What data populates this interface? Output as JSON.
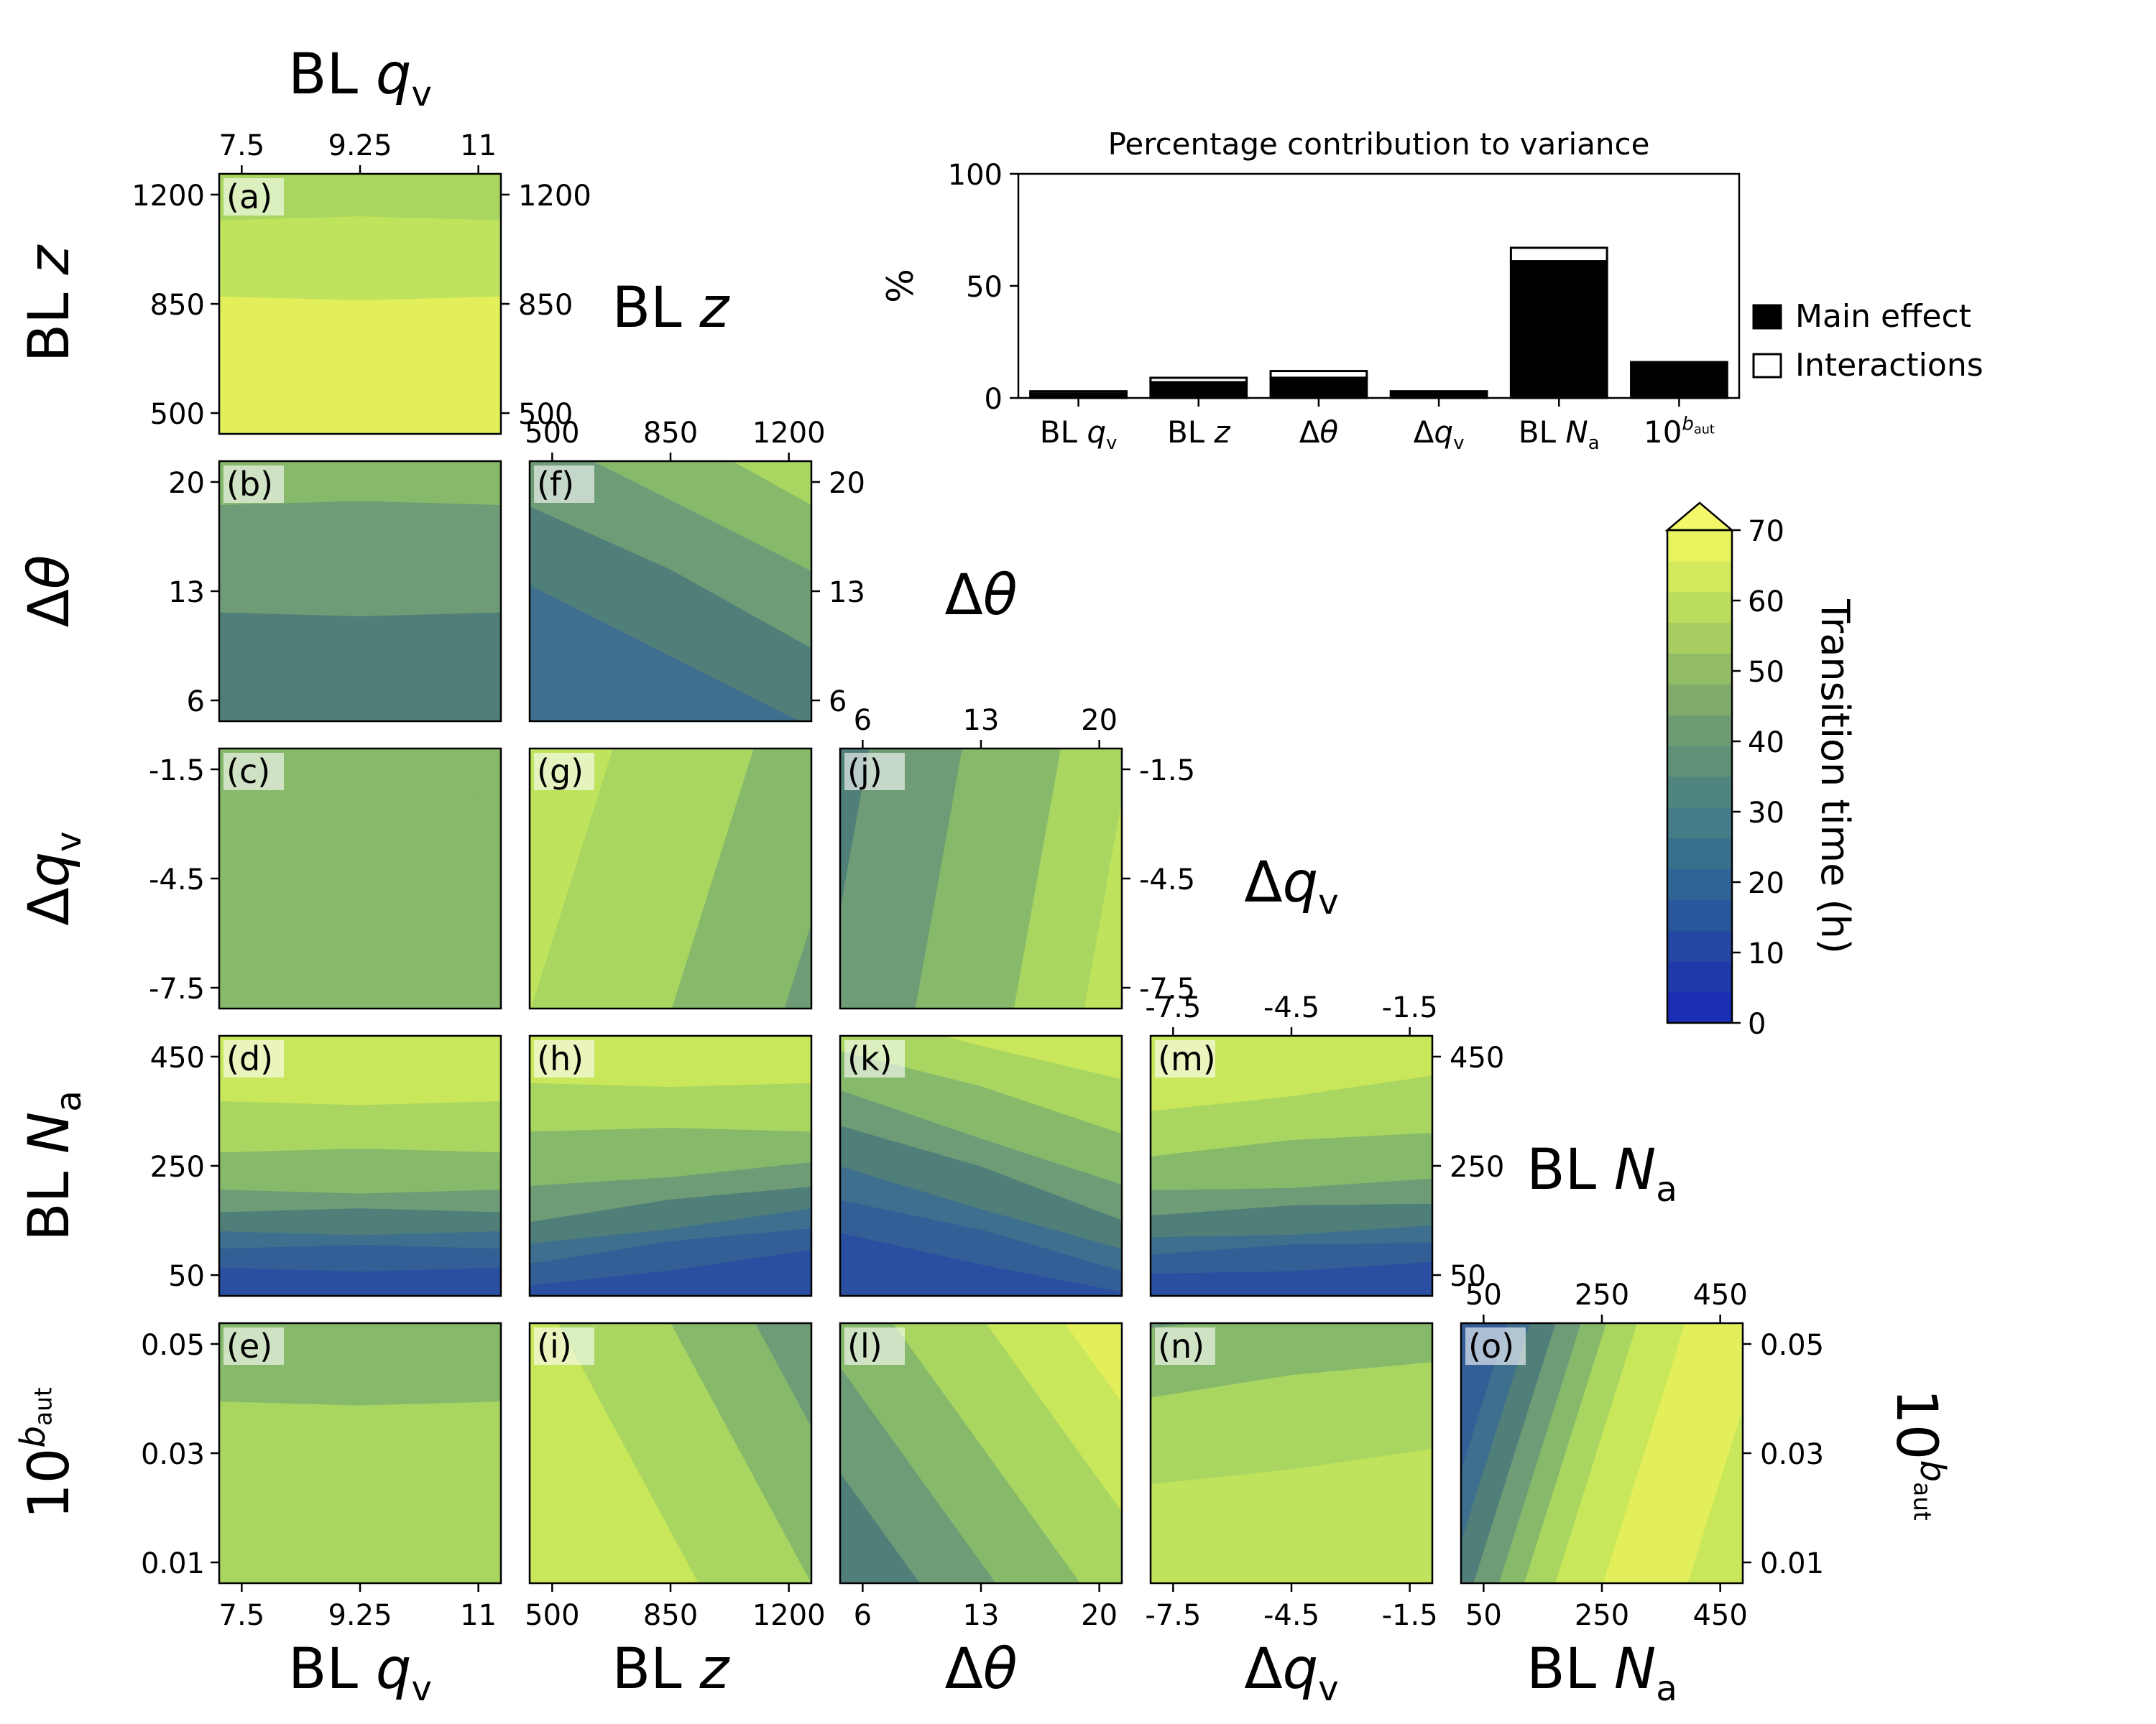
{
  "variables": [
    {
      "key": "qv",
      "pre": "BL ",
      "sym": "q",
      "sub": "v",
      "sup": "",
      "ticks": [
        "7.5",
        "9.25",
        "11"
      ]
    },
    {
      "key": "z",
      "pre": "BL ",
      "sym": "z",
      "sub": "",
      "sup": "",
      "ticks": [
        "500",
        "850",
        "1200"
      ]
    },
    {
      "key": "dtheta",
      "pre": "Δ",
      "sym": "θ",
      "sub": "",
      "sup": "",
      "ticks": [
        "6",
        "13",
        "20"
      ]
    },
    {
      "key": "dqv",
      "pre": "Δ",
      "sym": "q",
      "sub": "v",
      "sup": "",
      "ticks": [
        "-7.5",
        "-4.5",
        "-1.5"
      ]
    },
    {
      "key": "Na",
      "pre": "BL ",
      "sym": "N",
      "sub": "a",
      "sup": "",
      "ticks": [
        "50",
        "250",
        "450"
      ]
    },
    {
      "key": "baut",
      "pre": "10",
      "sym": "",
      "sub": "",
      "sup": "b",
      "supsub": "aut",
      "ticks": [
        "0.01",
        "0.03",
        "0.05"
      ]
    }
  ],
  "panels": [
    {
      "letter": "(a)",
      "col": 0,
      "row": 0,
      "fields": [
        {
          "yc": -0.05,
          "c": "#e3ef5a",
          "s": 0.06
        },
        {
          "yc": 0.28,
          "c": "#bfe35c",
          "s": 0.25
        },
        {
          "yc": 0.62,
          "c": "#a8d660",
          "s": 0.2
        },
        {
          "yc": 1.1,
          "c": "#87b96b",
          "s": 0.25
        }
      ]
    },
    {
      "letter": "(b)",
      "col": 0,
      "row": 1,
      "fields": [
        {
          "yc": -0.1,
          "c": "#507f79",
          "s": 0.1
        },
        {
          "yc": 0.2,
          "c": "#6e9c76",
          "s": 0.22
        },
        {
          "yc": 0.55,
          "c": "#87b96b",
          "s": 0.28
        },
        {
          "yc": 0.9,
          "c": "#a8d660",
          "s": 0.2
        },
        {
          "yc": 1.15,
          "c": "#bfe35c",
          "s": 0.2
        }
      ]
    },
    {
      "letter": "(c)",
      "col": 0,
      "row": 2,
      "fields": [
        {
          "yc": 0.3,
          "c": "#87b96b",
          "s": 0.5
        },
        {
          "yc": 1.05,
          "c": "#a8d660",
          "s": 0.15
        }
      ]
    },
    {
      "letter": "(d)",
      "col": 0,
      "row": 3,
      "fields": [
        {
          "yc": -0.05,
          "c": "#2a4fa0",
          "s": 0.05
        },
        {
          "yc": 0.06,
          "c": "#345f96",
          "s": 0.05
        },
        {
          "yc": 0.13,
          "c": "#3f6f8e",
          "s": 0.05
        },
        {
          "yc": 0.2,
          "c": "#507f79",
          "s": 0.05
        },
        {
          "yc": 0.27,
          "c": "#6e9c76",
          "s": 0.05
        },
        {
          "yc": 0.35,
          "c": "#87b96b",
          "s": 0.06
        },
        {
          "yc": 0.47,
          "c": "#a8d660",
          "s": 0.08
        },
        {
          "yc": 0.65,
          "c": "#c9e75a",
          "s": 0.1
        },
        {
          "yc": 0.9,
          "c": "#e3ef5a",
          "s": 0.15
        }
      ]
    },
    {
      "letter": "(e)",
      "col": 0,
      "row": 4,
      "fields": [
        {
          "yc": 0.1,
          "c": "#a8d660",
          "s": 0.25
        },
        {
          "yc": 0.5,
          "c": "#87b96b",
          "s": 0.2
        },
        {
          "yc": 0.85,
          "c": "#6e9c76",
          "s": 0.15
        },
        {
          "yc": 1.05,
          "c": "#507f79",
          "s": 0.05
        }
      ]
    },
    {
      "letter": "(f)",
      "col": 1,
      "row": 1,
      "fields": [
        {
          "yc": -0.2,
          "c": "#3f6f8e",
          "s": 0.1,
          "tilt": 0.6
        },
        {
          "yc": 0.1,
          "c": "#507f79",
          "s": 0.15,
          "tilt": 0.6
        },
        {
          "yc": 0.4,
          "c": "#6e9c76",
          "s": 0.15,
          "tilt": 0.6
        },
        {
          "yc": 0.7,
          "c": "#87b96b",
          "s": 0.15,
          "tilt": 0.6
        },
        {
          "yc": 0.95,
          "c": "#a8d660",
          "s": 0.15,
          "tilt": 0.6
        },
        {
          "yc": 1.2,
          "c": "#c9e75a",
          "s": 0.12,
          "tilt": 0.6
        },
        {
          "yc": 1.35,
          "c": "#e3ef5a",
          "s": 0.08,
          "tilt": 0.6
        }
      ]
    },
    {
      "letter": "(g)",
      "col": 1,
      "row": 2,
      "fields": [
        {
          "xc": 0.05,
          "c": "#bfe35c",
          "s": 0.12,
          "tilt": -0.35
        },
        {
          "xc": 0.4,
          "c": "#a8d660",
          "s": 0.25,
          "tilt": -0.35
        },
        {
          "xc": 0.85,
          "c": "#87b96b",
          "s": 0.2,
          "tilt": -0.35
        },
        {
          "xc": 1.2,
          "c": "#6e9c76",
          "s": 0.15,
          "tilt": -0.35
        }
      ]
    },
    {
      "letter": "(h)",
      "col": 1,
      "row": 3,
      "fields": [
        {
          "yc": -0.05,
          "c": "#2a4fa0",
          "s": 0.05,
          "tilt": -0.15
        },
        {
          "yc": 0.06,
          "c": "#345f96",
          "s": 0.05,
          "tilt": -0.15
        },
        {
          "yc": 0.14,
          "c": "#3f6f8e",
          "s": 0.05,
          "tilt": -0.15
        },
        {
          "yc": 0.22,
          "c": "#507f79",
          "s": 0.05,
          "tilt": -0.15
        },
        {
          "yc": 0.3,
          "c": "#6e9c76",
          "s": 0.05,
          "tilt": -0.15
        },
        {
          "yc": 0.4,
          "c": "#87b96b",
          "s": 0.07,
          "tilt": -0.1
        },
        {
          "yc": 0.55,
          "c": "#a8d660",
          "s": 0.08
        },
        {
          "yc": 0.72,
          "c": "#c9e75a",
          "s": 0.1
        },
        {
          "yc": 0.95,
          "c": "#e3ef5a",
          "s": 0.15
        }
      ]
    },
    {
      "letter": "(i)",
      "col": 1,
      "row": 4,
      "fields": [
        {
          "xc": 0.15,
          "c": "#c9e75a",
          "s": 0.2,
          "tilt": 0.6
        },
        {
          "xc": 0.55,
          "c": "#a8d660",
          "s": 0.2,
          "tilt": 0.6
        },
        {
          "xc": 0.9,
          "c": "#87b96b",
          "s": 0.15,
          "tilt": 0.6
        },
        {
          "xc": 1.2,
          "c": "#6e9c76",
          "s": 0.15,
          "tilt": 0.6
        },
        {
          "xc": 1.45,
          "c": "#507f79",
          "s": 0.1,
          "tilt": 0.6
        }
      ]
    },
    {
      "letter": "(j)",
      "col": 2,
      "row": 2,
      "fields": [
        {
          "xc": -0.05,
          "c": "#507f79",
          "s": 0.08,
          "tilt": -0.2
        },
        {
          "xc": 0.2,
          "c": "#6e9c76",
          "s": 0.18,
          "tilt": -0.2
        },
        {
          "xc": 0.55,
          "c": "#87b96b",
          "s": 0.2,
          "tilt": -0.2
        },
        {
          "xc": 0.85,
          "c": "#a8d660",
          "s": 0.15,
          "tilt": -0.2
        },
        {
          "xc": 1.1,
          "c": "#bfe35c",
          "s": 0.15,
          "tilt": -0.2
        }
      ]
    },
    {
      "letter": "(k)",
      "col": 2,
      "row": 3,
      "fields": [
        {
          "yc": -0.05,
          "c": "#2a4fa0",
          "s": 0.05,
          "tilt": 0.2
        },
        {
          "yc": 0.07,
          "c": "#345f96",
          "s": 0.06,
          "tilt": 0.25
        },
        {
          "yc": 0.17,
          "c": "#3f6f8e",
          "s": 0.06,
          "tilt": 0.3
        },
        {
          "yc": 0.28,
          "c": "#507f79",
          "s": 0.06,
          "tilt": 0.35
        },
        {
          "yc": 0.4,
          "c": "#6e9c76",
          "s": 0.07,
          "tilt": 0.4
        },
        {
          "yc": 0.53,
          "c": "#87b96b",
          "s": 0.08,
          "tilt": 0.4
        },
        {
          "yc": 0.68,
          "c": "#a8d660",
          "s": 0.1,
          "tilt": 0.35
        },
        {
          "yc": 0.85,
          "c": "#c9e75a",
          "s": 0.12,
          "tilt": 0.3
        },
        {
          "yc": 1.05,
          "c": "#e3ef5a",
          "s": 0.15,
          "tilt": 0.3
        }
      ]
    },
    {
      "letter": "(l)",
      "col": 2,
      "row": 4,
      "fields": [
        {
          "xc": -0.15,
          "c": "#507f79",
          "s": 0.1,
          "tilt": 0.8
        },
        {
          "xc": 0.1,
          "c": "#6e9c76",
          "s": 0.15,
          "tilt": 0.8
        },
        {
          "xc": 0.4,
          "c": "#87b96b",
          "s": 0.18,
          "tilt": 0.8
        },
        {
          "xc": 0.7,
          "c": "#a8d660",
          "s": 0.18,
          "tilt": 0.8
        },
        {
          "xc": 1.0,
          "c": "#c9e75a",
          "s": 0.15,
          "tilt": 0.8
        },
        {
          "xc": 1.25,
          "c": "#e3ef5a",
          "s": 0.12,
          "tilt": 0.8
        }
      ]
    },
    {
      "letter": "(m)",
      "col": 3,
      "row": 3,
      "fields": [
        {
          "yc": -0.05,
          "c": "#2a4fa0",
          "s": 0.05,
          "tilt": -0.05
        },
        {
          "yc": 0.06,
          "c": "#345f96",
          "s": 0.05,
          "tilt": -0.05
        },
        {
          "yc": 0.13,
          "c": "#3f6f8e",
          "s": 0.05,
          "tilt": -0.05
        },
        {
          "yc": 0.2,
          "c": "#507f79",
          "s": 0.05,
          "tilt": -0.05
        },
        {
          "yc": 0.28,
          "c": "#6e9c76",
          "s": 0.05,
          "tilt": -0.05
        },
        {
          "yc": 0.37,
          "c": "#87b96b",
          "s": 0.06,
          "tilt": -0.05
        },
        {
          "yc": 0.5,
          "c": "#a8d660",
          "s": 0.08,
          "tilt": -0.1
        },
        {
          "yc": 0.68,
          "c": "#c9e75a",
          "s": 0.1,
          "tilt": -0.15
        },
        {
          "yc": 0.95,
          "c": "#e3ef5a",
          "s": 0.15,
          "tilt": -0.2
        }
      ]
    },
    {
      "letter": "(n)",
      "col": 3,
      "row": 4,
      "fields": [
        {
          "yc": -0.05,
          "c": "#bfe35c",
          "s": 0.1,
          "tilt": -0.15
        },
        {
          "yc": 0.25,
          "c": "#a8d660",
          "s": 0.2,
          "tilt": -0.15
        },
        {
          "yc": 0.6,
          "c": "#87b96b",
          "s": 0.18,
          "tilt": -0.15
        },
        {
          "yc": 0.9,
          "c": "#6e9c76",
          "s": 0.15,
          "tilt": -0.15
        },
        {
          "yc": 1.1,
          "c": "#507f79",
          "s": 0.08,
          "tilt": -0.15
        }
      ]
    },
    {
      "letter": "(o)",
      "col": 4,
      "row": 4,
      "fields": [
        {
          "xc": -0.05,
          "c": "#345f96",
          "s": 0.05,
          "tilt": -0.35
        },
        {
          "xc": 0.07,
          "c": "#3f6f8e",
          "s": 0.05,
          "tilt": -0.35
        },
        {
          "xc": 0.15,
          "c": "#507f79",
          "s": 0.05,
          "tilt": -0.35
        },
        {
          "xc": 0.24,
          "c": "#6e9c76",
          "s": 0.05,
          "tilt": -0.35
        },
        {
          "xc": 0.33,
          "c": "#87b96b",
          "s": 0.05,
          "tilt": -0.35
        },
        {
          "xc": 0.43,
          "c": "#a8d660",
          "s": 0.06,
          "tilt": -0.35
        },
        {
          "xc": 0.56,
          "c": "#c9e75a",
          "s": 0.08,
          "tilt": -0.35
        },
        {
          "xc": 0.8,
          "c": "#e3ef5a",
          "s": 0.15,
          "tilt": -0.35
        },
        {
          "xc": 1.05,
          "c": "#c9e75a",
          "s": 0.1,
          "tilt": -0.35
        }
      ]
    }
  ],
  "colorbar": {
    "label": "Transition time (h)",
    "ticks": [
      "0",
      "10",
      "20",
      "30",
      "40",
      "50",
      "60",
      "70"
    ],
    "colors": [
      "#1a2eb4",
      "#1f3aaa",
      "#2448a2",
      "#29579b",
      "#2e6494",
      "#37708d",
      "#437c86",
      "#4f857e",
      "#5e9177",
      "#6e9c72",
      "#80ab6c",
      "#93bc66",
      "#a8cd61",
      "#bcdc5d",
      "#d2e95c",
      "#e8f35e"
    ],
    "extend_color": "#f3f86a"
  },
  "chart_data": {
    "type": "bar",
    "title": "Percentage contribution to variance",
    "ylabel": "%",
    "ylim": [
      0,
      100
    ],
    "yticks": [
      "0",
      "50",
      "100"
    ],
    "categories": [
      "BL qv",
      "BL z",
      "Δθ",
      "Δqv",
      "BL Na",
      "10^baut"
    ],
    "series": [
      {
        "name": "Main effect",
        "values": [
          2,
          7,
          9,
          3,
          61,
          16
        ],
        "color": "#000000"
      },
      {
        "name": "Interactions",
        "values": [
          1,
          2,
          3,
          0,
          6,
          0
        ],
        "color": "#ffffff"
      }
    ],
    "legend_position": "right"
  }
}
